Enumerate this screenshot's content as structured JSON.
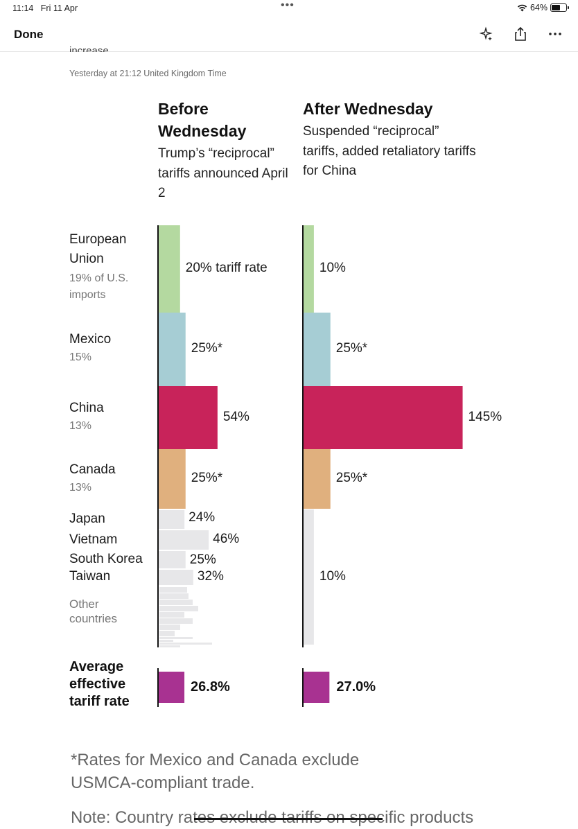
{
  "status_bar": {
    "time": "11:14",
    "date": "Fri 11 Apr",
    "dots": "•••",
    "battery": "64%",
    "battery_level": 0.64
  },
  "toolbar": {
    "done_label": "Done",
    "icons": [
      "sparkle-icon",
      "share-icon",
      "more-icon"
    ]
  },
  "article": {
    "cut_text": "increase.",
    "timestamp": "Yesterday at 21:12 United Kingdom Time",
    "footnote": "*Rates for Mexico and Canada exclude USMCA-compliant trade.",
    "note": "Note: Country rates exclude tariffs on specific products"
  },
  "chart_data": {
    "type": "bar",
    "orientation": "horizontal",
    "panels": [
      {
        "title": "Before Wednesday",
        "subtitle": "Trump’s “reciprocal” tariffs announced April 2"
      },
      {
        "title": "After Wednesday",
        "subtitle": "Suspended “reciprocal” tariffs, added retaliatory tariffs for China"
      }
    ],
    "rows": [
      {
        "name": "European Union",
        "share": "19% of U.S. imports",
        "before": 20,
        "after": 10,
        "before_label": "20% tariff rate",
        "after_label": "10%",
        "color": "#b4d9a0"
      },
      {
        "name": "Mexico",
        "share": "15%",
        "before": 25,
        "after": 25,
        "before_label": "25%*",
        "after_label": "25%*",
        "color": "#a6cdd4"
      },
      {
        "name": "China",
        "share": "13%",
        "before": 54,
        "after": 145,
        "before_label": "54%",
        "after_label": "145%",
        "color": "#c8235a"
      },
      {
        "name": "Canada",
        "share": "13%",
        "before": 25,
        "after": 25,
        "before_label": "25%*",
        "after_label": "25%*",
        "color": "#e0b07e"
      }
    ],
    "minor_rows": [
      {
        "name": "Japan",
        "before": 24,
        "after": 10,
        "before_label": "24%"
      },
      {
        "name": "Vietnam",
        "before": 46,
        "after": 10,
        "before_label": "46%"
      },
      {
        "name": "South Korea",
        "before": 25,
        "after": 10,
        "before_label": "25%"
      },
      {
        "name": "Taiwan",
        "before": 32,
        "after": 10,
        "before_label": "32%"
      }
    ],
    "minor_after_label": "10%",
    "other_countries_label": "Other countries",
    "other_color": "#e7e7e9",
    "average": {
      "label": "Average effective tariff rate",
      "before": 26.8,
      "after": 27.0,
      "before_label": "26.8%",
      "after_label": "27.0%",
      "color": "#a83291"
    }
  }
}
